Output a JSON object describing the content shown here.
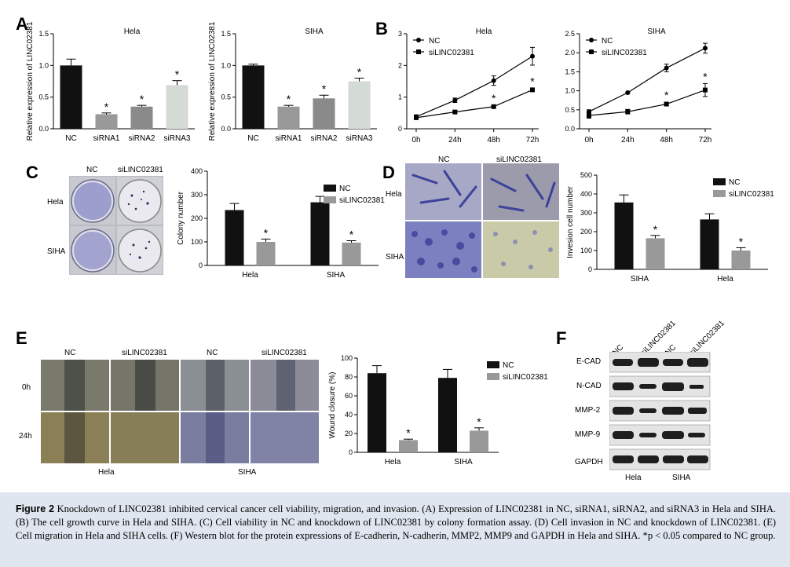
{
  "panels": {
    "A": "A",
    "B": "B",
    "C": "C",
    "D": "D",
    "E": "E",
    "F": "F"
  },
  "colors": {
    "black_bar": "#111111",
    "gray_bar": "#999999",
    "mid_gray_bar": "#8a8a8a",
    "light_bar": "#d4dad4",
    "caption_bg": "#dfe6ef"
  },
  "chart_data": [
    {
      "id": "A-hela",
      "type": "bar",
      "title": "Hela",
      "ylabel": "Relative expression of LINC02381",
      "ylim": [
        0,
        1.5
      ],
      "yticks": [
        0.0,
        0.5,
        1.0,
        1.5
      ],
      "categories": [
        "NC",
        "siRNA1",
        "siRNA2",
        "siRNA3"
      ],
      "values": [
        1.0,
        0.23,
        0.35,
        0.69
      ],
      "errors": [
        0.1,
        0.02,
        0.02,
        0.07
      ],
      "stars": [
        "",
        "*",
        "*",
        "*"
      ]
    },
    {
      "id": "A-siha",
      "type": "bar",
      "title": "SIHA",
      "ylabel": "Relative expression of LINC02381",
      "ylim": [
        0,
        1.5
      ],
      "yticks": [
        0.0,
        0.5,
        1.0,
        1.5
      ],
      "categories": [
        "NC",
        "siRNA1",
        "siRNA2",
        "siRNA3"
      ],
      "values": [
        1.0,
        0.35,
        0.48,
        0.75
      ],
      "errors": [
        0.02,
        0.02,
        0.05,
        0.05
      ],
      "stars": [
        "",
        "*",
        "*",
        "*"
      ]
    },
    {
      "id": "B-hela",
      "type": "line",
      "title": "Hela",
      "ylim": [
        0,
        3
      ],
      "yticks": [
        0,
        1,
        2,
        3
      ],
      "x": [
        "0h",
        "24h",
        "48h",
        "72h"
      ],
      "series": [
        {
          "name": "NC",
          "values": [
            0.38,
            0.9,
            1.52,
            2.29
          ],
          "errors": [
            0.06,
            0.07,
            0.15,
            0.28
          ]
        },
        {
          "name": "siLINC02381",
          "values": [
            0.35,
            0.53,
            0.7,
            1.23
          ],
          "errors": [
            0.03,
            0.03,
            0.04,
            0.05
          ]
        }
      ],
      "stars": [
        "",
        "",
        "*",
        "*"
      ]
    },
    {
      "id": "B-siha",
      "type": "line",
      "title": "SIHA",
      "ylim": [
        0,
        2.5
      ],
      "yticks": [
        0.0,
        0.5,
        1.0,
        1.5,
        2.0,
        2.5
      ],
      "x": [
        "0h",
        "24h",
        "48h",
        "72h"
      ],
      "series": [
        {
          "name": "NC",
          "values": [
            0.45,
            0.95,
            1.6,
            2.12
          ],
          "errors": [
            0.05,
            0.02,
            0.1,
            0.13
          ]
        },
        {
          "name": "siLINC02381",
          "values": [
            0.35,
            0.45,
            0.65,
            1.02
          ],
          "errors": [
            0.07,
            0.06,
            0.05,
            0.17
          ]
        }
      ],
      "stars": [
        "",
        "",
        "*",
        "*"
      ]
    },
    {
      "id": "C",
      "type": "bar",
      "ylabel": "Colony number",
      "ylim": [
        0,
        400
      ],
      "yticks": [
        0,
        100,
        200,
        300,
        400
      ],
      "categories": [
        "Hela",
        "SIHA"
      ],
      "series": [
        {
          "name": "NC",
          "values": [
            235,
            268
          ],
          "errors": [
            28,
            25
          ]
        },
        {
          "name": "siLINC02381",
          "values": [
            100,
            97
          ],
          "errors": [
            12,
            8
          ]
        }
      ],
      "stars": [
        "*",
        "*"
      ]
    },
    {
      "id": "D",
      "type": "bar",
      "ylabel": "Invesion cell number",
      "ylim": [
        0,
        500
      ],
      "yticks": [
        0,
        100,
        200,
        300,
        400,
        500
      ],
      "categories": [
        "SIHA",
        "Hela"
      ],
      "series": [
        {
          "name": "NC",
          "values": [
            355,
            265
          ],
          "errors": [
            40,
            30
          ]
        },
        {
          "name": "siLINC02381",
          "values": [
            165,
            100
          ],
          "errors": [
            15,
            15
          ]
        }
      ],
      "stars": [
        "*",
        "*"
      ]
    },
    {
      "id": "E",
      "type": "bar",
      "ylabel": "Wound closure (%)",
      "ylim": [
        0,
        100
      ],
      "yticks": [
        0,
        20,
        40,
        60,
        80,
        100
      ],
      "categories": [
        "Hela",
        "SIHA"
      ],
      "series": [
        {
          "name": "NC",
          "values": [
            84,
            79
          ],
          "errors": [
            8,
            9
          ]
        },
        {
          "name": "siLINC02381",
          "values": [
            13,
            23
          ],
          "errors": [
            1,
            3
          ]
        }
      ],
      "stars": [
        "*",
        "*"
      ]
    }
  ],
  "micrographs": {
    "C": {
      "cols": [
        "NC",
        "siLINC02381"
      ],
      "rows": [
        "Hela",
        "SIHA"
      ]
    },
    "D": {
      "cols": [
        "NC",
        "siLINC02381"
      ],
      "rows": [
        "Hela",
        "SIHA"
      ]
    },
    "E": {
      "cols": [
        "NC",
        "siLINC02381",
        "NC",
        "siLINC02381"
      ],
      "rows": [
        "0h",
        "24h"
      ],
      "groups": [
        "Hela",
        "SIHA"
      ]
    }
  },
  "western_blot": {
    "lanes": [
      "NC",
      "siLINC02381",
      "NC",
      "siLINC02381"
    ],
    "proteins": [
      "E-CAD",
      "N-CAD",
      "MMP-2",
      "MMP-9",
      "GAPDH"
    ],
    "groups": [
      "Hela",
      "SIHA"
    ]
  },
  "caption": {
    "fig": "Figure 2",
    "text": "Knockdown of LINC02381 inhibited cervical cancer cell viability, migration, and invasion. (A) Expression of LINC02381 in NC, siRNA1, siRNA2, and siRNA3 in Hela and SIHA. (B) The cell growth curve in Hela and SIHA. (C) Cell viability in NC and knockdown of LINC02381 by colony formation assay. (D) Cell invasion in NC and knockdown of LINC02381. (E) Cell migration in Hela and SIHA cells. (F) Western blot for the protein expressions of E-cadherin, N-cadherin, MMP2, MMP9 and GAPDH in Hela and SIHA. *p < 0.05 compared to NC group."
  }
}
